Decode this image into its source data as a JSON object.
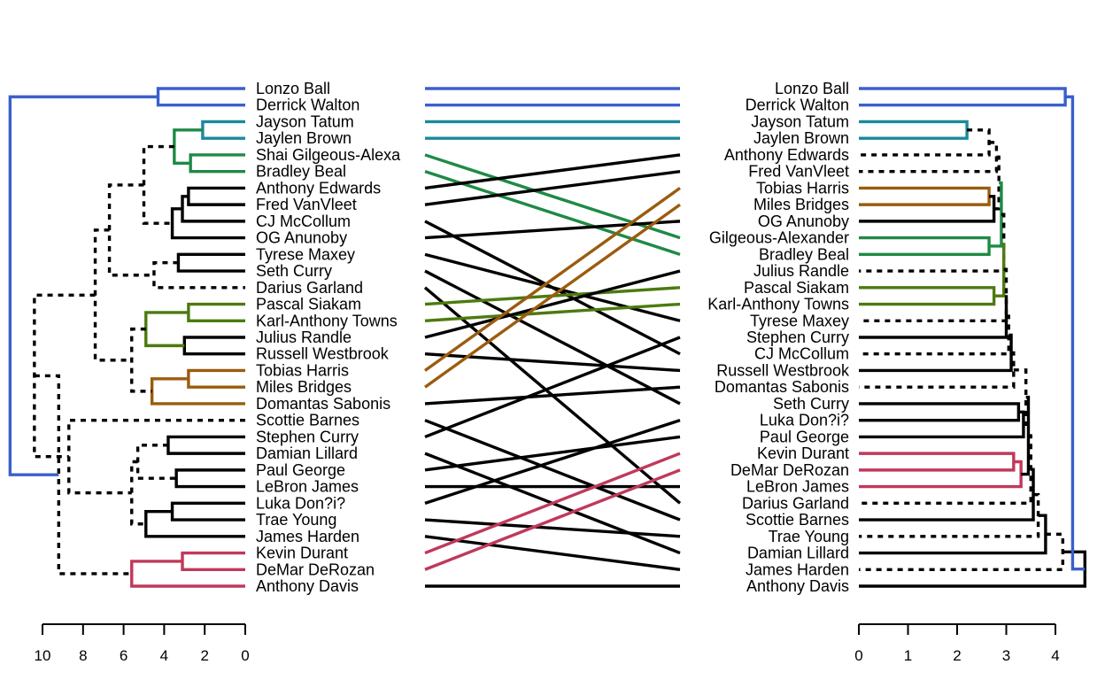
{
  "chart_data": {
    "type": "tanglegram",
    "title": "",
    "left_tree": {
      "labels": [
        "Lonzo Ball",
        "Derrick Walton",
        "Jayson Tatum",
        "Jaylen Brown",
        "Shai Gilgeous-Alexa",
        "Bradley Beal",
        "Anthony Edwards",
        "Fred VanVleet",
        "CJ McCollum",
        "OG Anunoby",
        "Tyrese Maxey",
        "Seth Curry",
        "Darius Garland",
        "Pascal Siakam",
        "Karl-Anthony Towns",
        "Julius Randle",
        "Russell Westbrook",
        "Tobias Harris",
        "Miles Bridges",
        "Domantas Sabonis",
        "Scottie Barnes",
        "Stephen Curry",
        "Damian Lillard",
        "Paul George",
        "LeBron James",
        "Luka Don?i?",
        "Trae Young",
        "James Harden",
        "Kevin Durant",
        "DeMar DeRozan",
        "Anthony Davis"
      ],
      "axis_ticks": [
        "10",
        "8",
        "6",
        "4",
        "2",
        "0"
      ],
      "axis_range": [
        0,
        10
      ],
      "axis_direction": "reversed",
      "merges": [
        {
          "a": 0,
          "b": 1,
          "h": 4.3,
          "color": "#3a5fcd",
          "style": "solid"
        },
        {
          "a": 2,
          "b": 3,
          "h": 2.1,
          "color": "#1a8a9a",
          "style": "solid"
        },
        {
          "a": 4,
          "b": 5,
          "h": 2.7,
          "color": "#1e8a45",
          "style": "solid"
        },
        {
          "a": -2,
          "b": -3,
          "h": 3.5,
          "color": "#1e8a45",
          "style": "solid"
        },
        {
          "a": 6,
          "b": 7,
          "h": 2.8,
          "color": "#000000",
          "style": "solid"
        },
        {
          "a": -5,
          "b": 8,
          "h": 3.1,
          "color": "#000000",
          "style": "solid"
        },
        {
          "a": -6,
          "b": 9,
          "h": 3.6,
          "color": "#000000",
          "style": "solid"
        },
        {
          "a": -4,
          "b": -7,
          "h": 5.0,
          "color": "#000000",
          "style": "dashed"
        },
        {
          "a": 10,
          "b": 11,
          "h": 3.3,
          "color": "#000000",
          "style": "solid"
        },
        {
          "a": -9,
          "b": 12,
          "h": 4.5,
          "color": "#000000",
          "style": "dashed"
        },
        {
          "a": -8,
          "b": -10,
          "h": 6.7,
          "color": "#000000",
          "style": "dashed"
        },
        {
          "a": 13,
          "b": 14,
          "h": 2.8,
          "color": "#4d7a0f",
          "style": "solid"
        },
        {
          "a": 15,
          "b": 16,
          "h": 3.0,
          "color": "#000000",
          "style": "solid"
        },
        {
          "a": -12,
          "b": -13,
          "h": 4.9,
          "color": "#4d7a0f",
          "style": "solid"
        },
        {
          "a": 17,
          "b": 18,
          "h": 2.8,
          "color": "#9a5c0e",
          "style": "solid"
        },
        {
          "a": -15,
          "b": 19,
          "h": 4.6,
          "color": "#9a5c0e",
          "style": "solid"
        },
        {
          "a": -14,
          "b": -16,
          "h": 5.6,
          "color": "#000000",
          "style": "dashed"
        },
        {
          "a": -11,
          "b": -17,
          "h": 7.4,
          "color": "#000000",
          "style": "dashed"
        },
        {
          "a": 21,
          "b": 22,
          "h": 3.8,
          "color": "#000000",
          "style": "solid"
        },
        {
          "a": 23,
          "b": 24,
          "h": 3.4,
          "color": "#000000",
          "style": "solid"
        },
        {
          "a": -19,
          "b": -20,
          "h": 5.3,
          "color": "#000000",
          "style": "dashed"
        },
        {
          "a": 25,
          "b": 26,
          "h": 3.6,
          "color": "#000000",
          "style": "solid"
        },
        {
          "a": -22,
          "b": 27,
          "h": 4.9,
          "color": "#000000",
          "style": "solid"
        },
        {
          "a": -21,
          "b": -23,
          "h": 5.6,
          "color": "#000000",
          "style": "dashed"
        },
        {
          "a": 20,
          "b": -24,
          "h": 8.7,
          "color": "#000000",
          "style": "dashed"
        },
        {
          "a": -18,
          "b": -25,
          "h": 10.4,
          "color": "#000000",
          "style": "dashed"
        },
        {
          "a": 28,
          "b": 29,
          "h": 3.1,
          "color": "#c0395a",
          "style": "solid"
        },
        {
          "a": -27,
          "b": 30,
          "h": 5.6,
          "color": "#c0395a",
          "style": "solid"
        },
        {
          "a": -26,
          "b": -28,
          "h": 9.2,
          "color": "#000000",
          "style": "dashed"
        },
        {
          "a": -1,
          "b": -29,
          "h": 11.6,
          "color": "#3a5fcd",
          "style": "solid"
        }
      ]
    },
    "right_tree": {
      "labels": [
        "Lonzo Ball",
        "Derrick Walton",
        "Jayson Tatum",
        "Jaylen Brown",
        "Anthony Edwards",
        "Fred VanVleet",
        "Tobias Harris",
        "Miles Bridges",
        "OG Anunoby",
        "Gilgeous-Alexander",
        "Bradley Beal",
        "Julius Randle",
        "Pascal Siakam",
        "Karl-Anthony Towns",
        "Tyrese Maxey",
        "Stephen Curry",
        "CJ McCollum",
        "Russell Westbrook",
        "Domantas Sabonis",
        "Seth Curry",
        "Luka Don?i?",
        "Paul George",
        "Kevin Durant",
        "DeMar DeRozan",
        "LeBron James",
        "Darius Garland",
        "Scottie Barnes",
        "Trae Young",
        "Damian Lillard",
        "James Harden",
        "Anthony Davis"
      ],
      "axis_ticks": [
        "0",
        "1",
        "2",
        "3",
        "4"
      ],
      "axis_range": [
        0,
        4
      ],
      "axis_direction": "normal",
      "merges": [
        {
          "a": 0,
          "b": 1,
          "h": 4.2,
          "color": "#3a5fcd",
          "style": "solid"
        },
        {
          "a": 2,
          "b": 3,
          "h": 2.2,
          "color": "#1a8a9a",
          "style": "solid"
        },
        {
          "a": -2,
          "b": 4,
          "h": 2.65,
          "color": "#000000",
          "style": "dashed"
        },
        {
          "a": -3,
          "b": 5,
          "h": 2.8,
          "color": "#000000",
          "style": "dashed"
        },
        {
          "a": 6,
          "b": 7,
          "h": 2.65,
          "color": "#9a5c0e",
          "style": "solid"
        },
        {
          "a": -5,
          "b": 8,
          "h": 2.75,
          "color": "#000000",
          "style": "solid"
        },
        {
          "a": -4,
          "b": -6,
          "h": 2.85,
          "color": "#000000",
          "style": "dashed"
        },
        {
          "a": 9,
          "b": 10,
          "h": 2.65,
          "color": "#1e8a45",
          "style": "solid"
        },
        {
          "a": -7,
          "b": -8,
          "h": 2.9,
          "color": "#1e8a45",
          "style": "solid"
        },
        {
          "a": -9,
          "b": 11,
          "h": 2.95,
          "color": "#000000",
          "style": "dashed"
        },
        {
          "a": 12,
          "b": 13,
          "h": 2.75,
          "color": "#4d7a0f",
          "style": "solid"
        },
        {
          "a": -10,
          "b": -11,
          "h": 2.95,
          "color": "#4d7a0f",
          "style": "solid"
        },
        {
          "a": -12,
          "b": 14,
          "h": 3.0,
          "color": "#000000",
          "style": "dashed"
        },
        {
          "a": -13,
          "b": 15,
          "h": 3.0,
          "color": "#000000",
          "style": "solid"
        },
        {
          "a": -14,
          "b": 16,
          "h": 3.05,
          "color": "#000000",
          "style": "dashed"
        },
        {
          "a": -15,
          "b": 17,
          "h": 3.1,
          "color": "#000000",
          "style": "solid"
        },
        {
          "a": -16,
          "b": 18,
          "h": 3.15,
          "color": "#000000",
          "style": "dashed"
        },
        {
          "a": 19,
          "b": 20,
          "h": 3.25,
          "color": "#000000",
          "style": "solid"
        },
        {
          "a": -18,
          "b": 21,
          "h": 3.35,
          "color": "#000000",
          "style": "solid"
        },
        {
          "a": -17,
          "b": -19,
          "h": 3.4,
          "color": "#000000",
          "style": "dashed"
        },
        {
          "a": 22,
          "b": 23,
          "h": 3.15,
          "color": "#c0395a",
          "style": "solid"
        },
        {
          "a": -21,
          "b": 24,
          "h": 3.3,
          "color": "#c0395a",
          "style": "solid"
        },
        {
          "a": -20,
          "b": -22,
          "h": 3.45,
          "color": "#000000",
          "style": "solid"
        },
        {
          "a": -23,
          "b": 25,
          "h": 3.5,
          "color": "#000000",
          "style": "dashed"
        },
        {
          "a": -24,
          "b": 26,
          "h": 3.55,
          "color": "#000000",
          "style": "solid"
        },
        {
          "a": -25,
          "b": 27,
          "h": 3.65,
          "color": "#000000",
          "style": "dashed"
        },
        {
          "a": -26,
          "b": 28,
          "h": 3.8,
          "color": "#000000",
          "style": "solid"
        },
        {
          "a": -27,
          "b": 29,
          "h": 4.15,
          "color": "#000000",
          "style": "dashed"
        },
        {
          "a": -28,
          "b": 30,
          "h": 4.6,
          "color": "#000000",
          "style": "solid"
        },
        {
          "a": -1,
          "b": -29,
          "h": 4.35,
          "color": "#3a5fcd",
          "style": "solid"
        }
      ]
    },
    "connectors": [
      {
        "left": 0,
        "right": 0,
        "color": "#3a5fcd"
      },
      {
        "left": 1,
        "right": 1,
        "color": "#3a5fcd"
      },
      {
        "left": 2,
        "right": 2,
        "color": "#1a8a9a"
      },
      {
        "left": 3,
        "right": 3,
        "color": "#1a8a9a"
      },
      {
        "left": 4,
        "right": 9,
        "color": "#1e8a45"
      },
      {
        "left": 5,
        "right": 10,
        "color": "#1e8a45"
      },
      {
        "left": 6,
        "right": 4,
        "color": "#000000"
      },
      {
        "left": 7,
        "right": 5,
        "color": "#000000"
      },
      {
        "left": 8,
        "right": 16,
        "color": "#000000"
      },
      {
        "left": 9,
        "right": 8,
        "color": "#000000"
      },
      {
        "left": 10,
        "right": 14,
        "color": "#000000"
      },
      {
        "left": 11,
        "right": 19,
        "color": "#000000"
      },
      {
        "left": 12,
        "right": 25,
        "color": "#000000"
      },
      {
        "left": 13,
        "right": 12,
        "color": "#4d7a0f"
      },
      {
        "left": 14,
        "right": 13,
        "color": "#4d7a0f"
      },
      {
        "left": 15,
        "right": 11,
        "color": "#000000"
      },
      {
        "left": 16,
        "right": 17,
        "color": "#000000"
      },
      {
        "left": 17,
        "right": 6,
        "color": "#9a5c0e"
      },
      {
        "left": 18,
        "right": 7,
        "color": "#9a5c0e"
      },
      {
        "left": 19,
        "right": 18,
        "color": "#000000"
      },
      {
        "left": 20,
        "right": 26,
        "color": "#000000"
      },
      {
        "left": 21,
        "right": 15,
        "color": "#000000"
      },
      {
        "left": 22,
        "right": 28,
        "color": "#000000"
      },
      {
        "left": 23,
        "right": 21,
        "color": "#000000"
      },
      {
        "left": 24,
        "right": 24,
        "color": "#000000"
      },
      {
        "left": 25,
        "right": 20,
        "color": "#000000"
      },
      {
        "left": 26,
        "right": 27,
        "color": "#000000"
      },
      {
        "left": 27,
        "right": 29,
        "color": "#000000"
      },
      {
        "left": 28,
        "right": 22,
        "color": "#c0395a"
      },
      {
        "left": 29,
        "right": 23,
        "color": "#c0395a"
      },
      {
        "left": 30,
        "right": 30,
        "color": "#000000"
      }
    ]
  }
}
